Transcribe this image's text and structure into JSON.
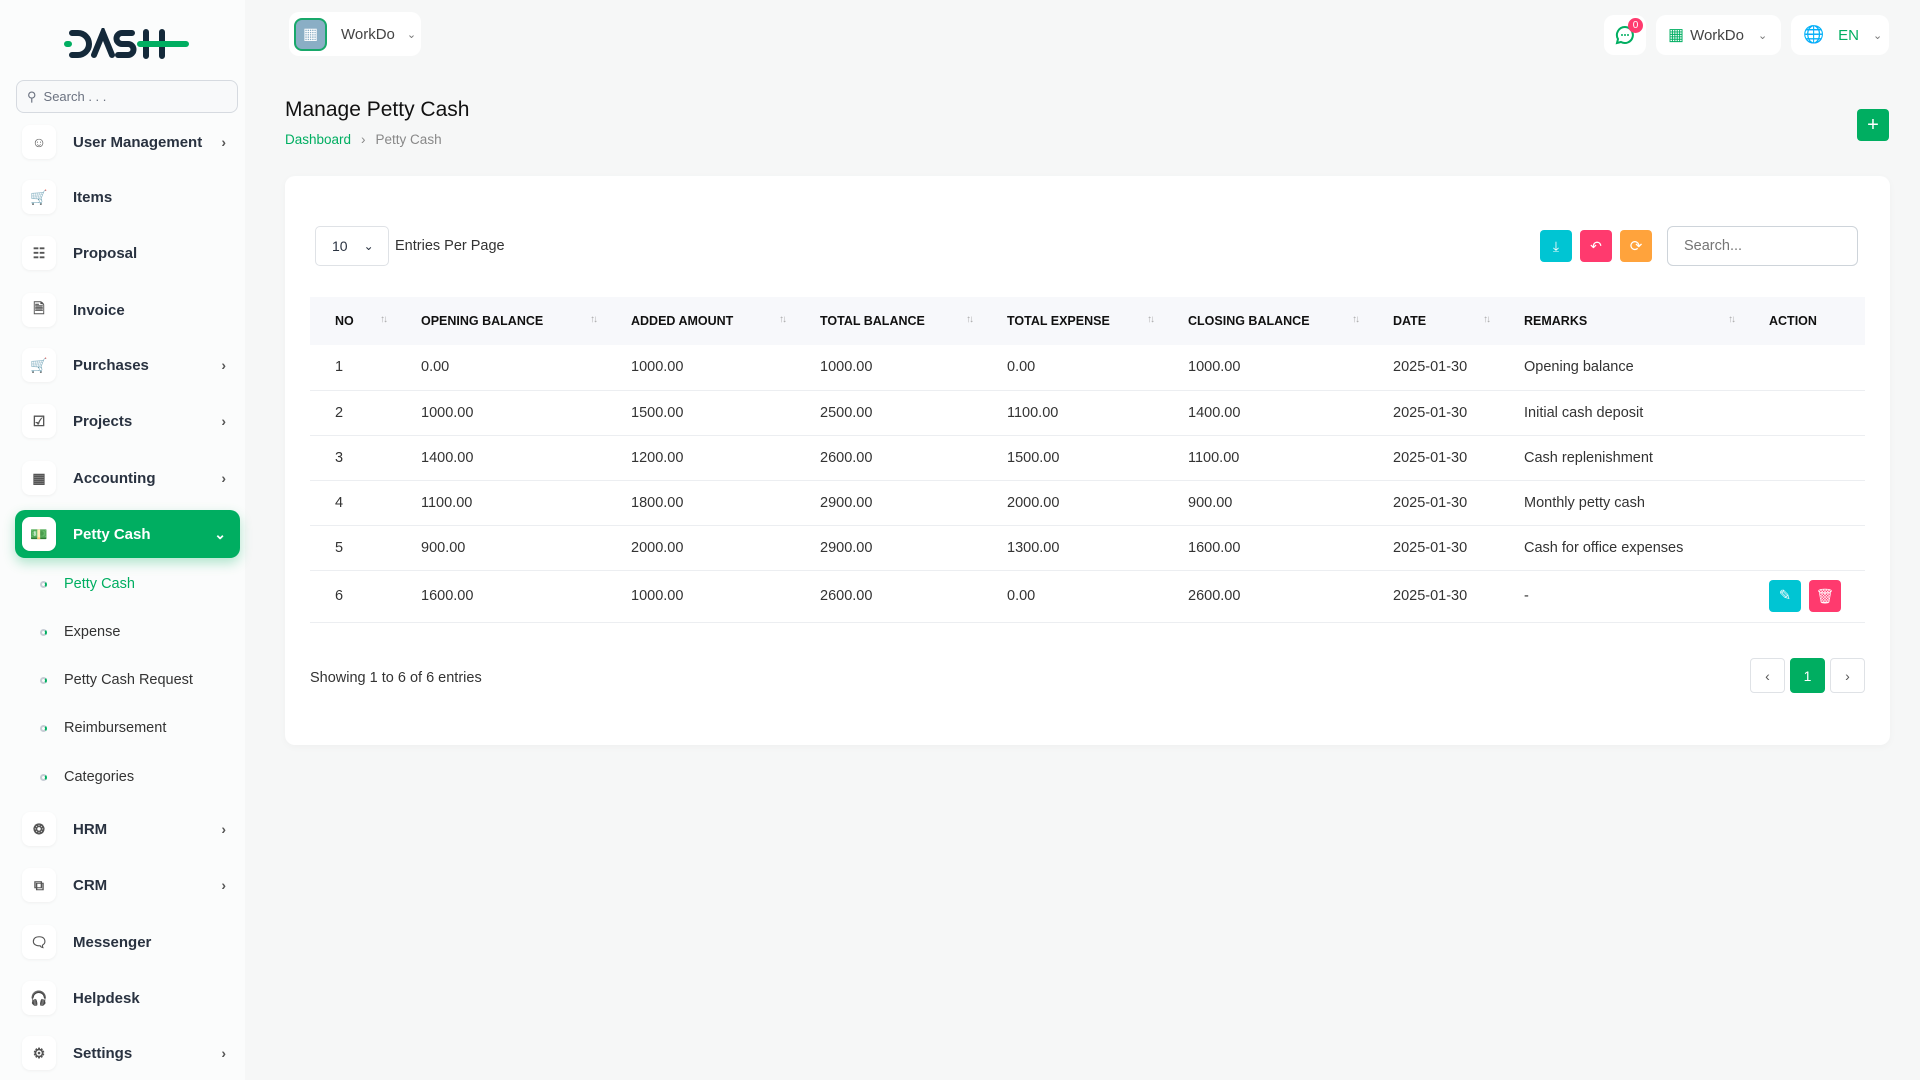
{
  "brand": {
    "logo": "DASH",
    "accent": "#00ae61"
  },
  "sidebar": {
    "search_placeholder": "Search . . .",
    "items": [
      {
        "label": "User Management",
        "icon": "users-icon",
        "chevron": true
      },
      {
        "label": "Items",
        "icon": "cart-icon",
        "chevron": false
      },
      {
        "label": "Proposal",
        "icon": "proposal-icon",
        "chevron": false
      },
      {
        "label": "Invoice",
        "icon": "file-icon",
        "chevron": false
      },
      {
        "label": "Purchases",
        "icon": "cart-icon",
        "chevron": true
      },
      {
        "label": "Projects",
        "icon": "check-square-icon",
        "chevron": true
      },
      {
        "label": "Accounting",
        "icon": "grid-icon",
        "chevron": true
      },
      {
        "label": "Petty Cash",
        "icon": "cash-icon",
        "chevron": true,
        "active": true
      }
    ],
    "submenu": [
      "Petty Cash",
      "Expense",
      "Petty Cash Request",
      "Reimbursement",
      "Categories"
    ],
    "items_after": [
      {
        "label": "HRM",
        "icon": "hrm-icon",
        "chevron": true
      },
      {
        "label": "CRM",
        "icon": "crm-icon",
        "chevron": true
      },
      {
        "label": "Messenger",
        "icon": "message-icon",
        "chevron": false
      },
      {
        "label": "Helpdesk",
        "icon": "headphones-icon",
        "chevron": false
      },
      {
        "label": "Settings",
        "icon": "gear-icon",
        "chevron": true
      }
    ]
  },
  "header": {
    "workspace": "WorkDo",
    "notifications": "0",
    "company": "WorkDo",
    "language": "EN"
  },
  "page": {
    "title": "Manage Petty Cash",
    "breadcrumb": [
      "Dashboard",
      "Petty Cash"
    ]
  },
  "table": {
    "entries_value": "10",
    "entries_label": "Entries Per Page",
    "search_placeholder": "Search...",
    "columns": [
      "NO",
      "OPENING BALANCE",
      "ADDED AMOUNT",
      "TOTAL BALANCE",
      "TOTAL EXPENSE",
      "CLOSING BALANCE",
      "DATE",
      "REMARKS",
      "ACTION"
    ],
    "rows": [
      [
        "1",
        "0.00",
        "1000.00",
        "1000.00",
        "0.00",
        "1000.00",
        "2025-01-30",
        "Opening balance"
      ],
      [
        "2",
        "1000.00",
        "1500.00",
        "2500.00",
        "1100.00",
        "1400.00",
        "2025-01-30",
        "Initial cash deposit"
      ],
      [
        "3",
        "1400.00",
        "1200.00",
        "2600.00",
        "1500.00",
        "1100.00",
        "2025-01-30",
        "Cash replenishment"
      ],
      [
        "4",
        "1100.00",
        "1800.00",
        "2900.00",
        "2000.00",
        "900.00",
        "2025-01-30",
        "Monthly petty cash"
      ],
      [
        "5",
        "900.00",
        "2000.00",
        "2900.00",
        "1300.00",
        "1600.00",
        "2025-01-30",
        "Cash for office expenses"
      ],
      [
        "6",
        "1600.00",
        "1000.00",
        "2600.00",
        "0.00",
        "2600.00",
        "2025-01-30",
        "-"
      ]
    ],
    "showing": "Showing 1 to 6 of 6 entries",
    "current_page": "1"
  }
}
